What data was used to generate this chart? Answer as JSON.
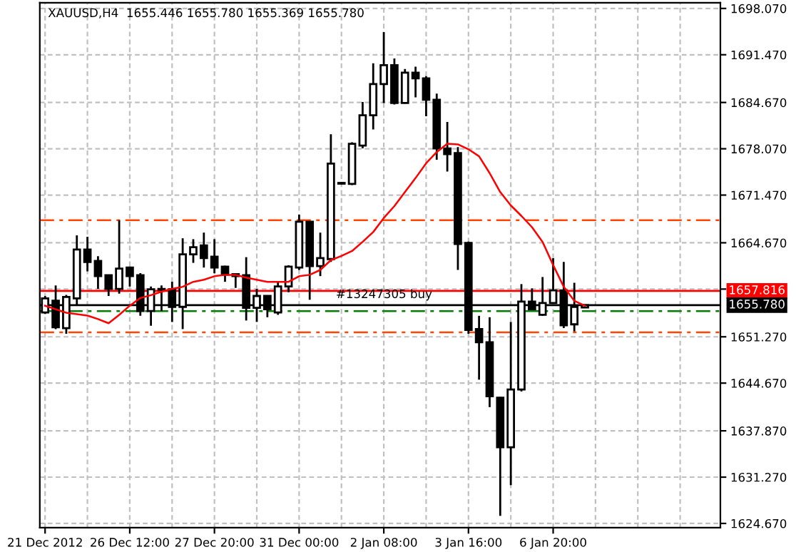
{
  "chart_data": {
    "type": "candlestick",
    "title": "XAUUSD,H4  1655.446 1655.780 1655.369 1655.780",
    "categories": [
      "21 Dec 2012",
      null,
      null,
      null,
      null,
      null,
      null,
      null,
      "26 Dec 12:00",
      null,
      null,
      null,
      null,
      null,
      null,
      null,
      "27 Dec 20:00",
      null,
      null,
      null,
      null,
      null,
      null,
      null,
      "31 Dec 00:00",
      null,
      null,
      null,
      null,
      null,
      null,
      null,
      "2 Jan 08:00",
      null,
      null,
      null,
      null,
      null,
      null,
      null,
      "3 Jan 16:00",
      null,
      null,
      null,
      null,
      null,
      null,
      null,
      "6 Jan 20:00",
      null,
      null,
      null
    ],
    "ohlc": [
      [
        1654.73,
        1657.09,
        1654.53,
        1656.75
      ],
      [
        1656.42,
        1658.58,
        1652.37,
        1652.64
      ],
      [
        1652.51,
        1657.23,
        1651.7,
        1656.96
      ],
      [
        1656.75,
        1665.72,
        1655.74,
        1663.7
      ],
      [
        1663.7,
        1665.52,
        1660.6,
        1661.94
      ],
      [
        1662.08,
        1662.75,
        1658.1,
        1659.92
      ],
      [
        1660.06,
        1660.06,
        1657.09,
        1658.1
      ],
      [
        1658.1,
        1667.88,
        1657.43,
        1661.0
      ],
      [
        1661.14,
        1661.27,
        1658.44,
        1659.92
      ],
      [
        1660.06,
        1660.33,
        1654.26,
        1654.94
      ],
      [
        1654.94,
        1658.44,
        1652.85,
        1658.04
      ],
      [
        1658.0,
        1658.58,
        1654.94,
        1658.1
      ],
      [
        1658.04,
        1659.11,
        1653.39,
        1655.54
      ],
      [
        1655.54,
        1665.31,
        1652.37,
        1663.02
      ],
      [
        1663.02,
        1665.18,
        1661.81,
        1664.03
      ],
      [
        1664.3,
        1666.12,
        1661.14,
        1662.48
      ],
      [
        1662.69,
        1665.18,
        1660.33,
        1661.14
      ],
      [
        1661.27,
        1661.4,
        1659.11,
        1660.13
      ],
      [
        1660.2,
        1660.3,
        1658.24,
        1659.92
      ],
      [
        1660.06,
        1662.62,
        1653.59,
        1655.41
      ],
      [
        1655.41,
        1658.1,
        1653.39,
        1657.09
      ],
      [
        1657.09,
        1657.2,
        1654.06,
        1655.2
      ],
      [
        1654.73,
        1659.11,
        1654.4,
        1658.44
      ],
      [
        1658.44,
        1661.47,
        1657.63,
        1661.27
      ],
      [
        1661.14,
        1668.68,
        1660.8,
        1667.67
      ],
      [
        1667.67,
        1667.7,
        1656.55,
        1661.34
      ],
      [
        1661.34,
        1666.12,
        1659.92,
        1662.48
      ],
      [
        1662.35,
        1680.14,
        1661.94,
        1675.96
      ],
      [
        1673.1,
        1673.3,
        1673.0,
        1673.2
      ],
      [
        1673.07,
        1679.0,
        1672.9,
        1678.79
      ],
      [
        1678.52,
        1684.73,
        1678.12,
        1682.84
      ],
      [
        1682.84,
        1690.25,
        1680.82,
        1687.29
      ],
      [
        1687.29,
        1694.7,
        1684.59,
        1689.98
      ],
      [
        1689.98,
        1690.93,
        1684.39,
        1684.59
      ],
      [
        1684.59,
        1689.44,
        1684.5,
        1688.91
      ],
      [
        1688.91,
        1689.78,
        1685.4,
        1688.1
      ],
      [
        1688.1,
        1688.43,
        1682.7,
        1685.06
      ],
      [
        1685.06,
        1685.94,
        1676.5,
        1678.12
      ],
      [
        1678.12,
        1681.9,
        1674.82,
        1677.31
      ],
      [
        1677.45,
        1678.32,
        1660.8,
        1664.51
      ],
      [
        1664.64,
        1664.84,
        1651.7,
        1652.24
      ],
      [
        1652.37,
        1654.26,
        1645.16,
        1650.49
      ],
      [
        1650.49,
        1654.06,
        1641.25,
        1642.8
      ],
      [
        1642.6,
        1642.7,
        1625.75,
        1635.52
      ],
      [
        1635.52,
        1653.39,
        1630.13,
        1643.75
      ],
      [
        1643.75,
        1658.78,
        1643.48,
        1656.28
      ],
      [
        1656.28,
        1658.17,
        1655.07,
        1655.2
      ],
      [
        1654.4,
        1659.79,
        1654.26,
        1656.08
      ],
      [
        1656.08,
        1662.48,
        1656.0,
        1657.9
      ],
      [
        1657.9,
        1661.94,
        1652.51,
        1652.91
      ],
      [
        1653.05,
        1658.98,
        1652.04,
        1655.54
      ],
      [
        1655.446,
        1655.78,
        1655.369,
        1655.78
      ]
    ],
    "series": [
      {
        "type": "line",
        "color": "#ff0000",
        "values": [
          1655.7,
          1655.2,
          1654.7,
          1654.5,
          1654.3,
          1653.8,
          1653.2,
          1654.4,
          1655.7,
          1656.8,
          1657.2,
          1657.7,
          1658.1,
          1658.4,
          1659.1,
          1659.4,
          1659.9,
          1660.1,
          1660.1,
          1659.7,
          1659.4,
          1659.1,
          1659.1,
          1659.1,
          1659.9,
          1660.1,
          1660.8,
          1662.2,
          1662.8,
          1663.5,
          1664.8,
          1666.2,
          1668.2,
          1669.9,
          1671.9,
          1673.9,
          1676.0,
          1677.6,
          1678.8,
          1678.7,
          1678.0,
          1677.0,
          1674.6,
          1671.9,
          1670.0,
          1668.5,
          1666.9,
          1664.8,
          1661.5,
          1658.4,
          1656.4,
          1655.7
        ]
      }
    ],
    "ylim": [
      1624.06,
      1698.88
    ],
    "yticks": [
      {
        "value": 1624.67,
        "label": "1624.670"
      },
      {
        "value": 1631.27,
        "label": "1631.270"
      },
      {
        "value": 1637.87,
        "label": "1637.870"
      },
      {
        "value": 1644.67,
        "label": "1644.670"
      },
      {
        "value": 1651.27,
        "label": "1651.270"
      },
      {
        "value": 1658.07,
        "label": null
      },
      {
        "value": 1664.67,
        "label": "1664.670"
      },
      {
        "value": 1671.47,
        "label": "1671.470"
      },
      {
        "value": 1678.07,
        "label": "1678.070"
      },
      {
        "value": 1684.67,
        "label": "1684.670"
      },
      {
        "value": 1691.47,
        "label": "1691.470"
      },
      {
        "value": 1698.07,
        "label": "1698.070"
      }
    ],
    "ref_lines": [
      {
        "axis": "y",
        "value": 1667.88,
        "color": "#ff4500",
        "line_style": "dashdot"
      },
      {
        "axis": "y",
        "value": 1651.9,
        "color": "#ff4500",
        "line_style": "dashdot"
      },
      {
        "axis": "y",
        "value": 1654.94,
        "color": "#008000",
        "line_style": "dashdot",
        "label": "#13247305 buy"
      },
      {
        "axis": "y",
        "value": 1657.816,
        "color": "#ff0000",
        "line_style": "solid",
        "label": "1657.816"
      },
      {
        "axis": "y",
        "value": 1655.78,
        "color": "#000000",
        "line_style": "solid",
        "label": "1655.780"
      }
    ],
    "grid": true
  }
}
